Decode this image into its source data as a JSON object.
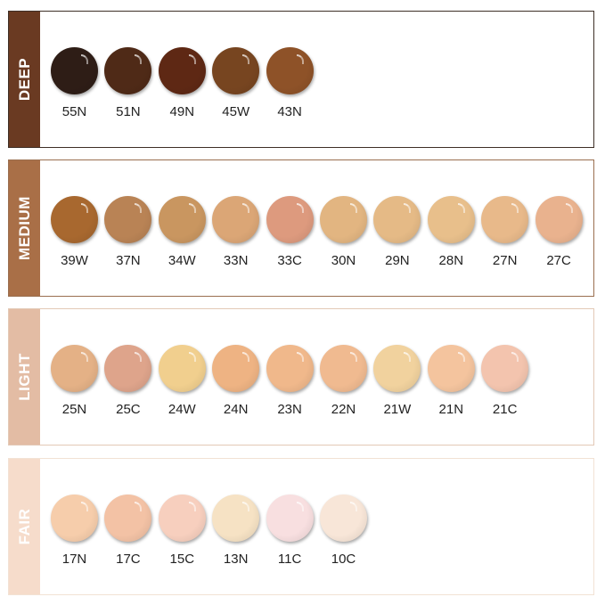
{
  "groups": [
    {
      "name": "DEEP",
      "bar_color": "#6a3a22",
      "border_color": "#3e2f26",
      "shades": [
        {
          "label": "55N",
          "color": "#2e1d16"
        },
        {
          "label": "51N",
          "color": "#4f2a17"
        },
        {
          "label": "49N",
          "color": "#5e2814"
        },
        {
          "label": "45W",
          "color": "#774520"
        },
        {
          "label": "43N",
          "color": "#8e5228"
        }
      ]
    },
    {
      "name": "MEDIUM",
      "bar_color": "#a96f47",
      "border_color": "#9a6f50",
      "shades": [
        {
          "label": "39W",
          "color": "#a8682f"
        },
        {
          "label": "37N",
          "color": "#b98355"
        },
        {
          "label": "34W",
          "color": "#c99660"
        },
        {
          "label": "33N",
          "color": "#dba676"
        },
        {
          "label": "33C",
          "color": "#dd9a7e"
        },
        {
          "label": "30N",
          "color": "#e2b581"
        },
        {
          "label": "29N",
          "color": "#e5ba86"
        },
        {
          "label": "28N",
          "color": "#e8bf8b"
        },
        {
          "label": "27N",
          "color": "#e8b98a"
        },
        {
          "label": "27C",
          "color": "#e9b28e"
        }
      ]
    },
    {
      "name": "LIGHT",
      "bar_color": "#e3bca4",
      "border_color": "#e3c9b6",
      "shades": [
        {
          "label": "25N",
          "color": "#e4b186"
        },
        {
          "label": "25C",
          "color": "#dea48b"
        },
        {
          "label": "24W",
          "color": "#f1cf8e"
        },
        {
          "label": "24N",
          "color": "#eeb383"
        },
        {
          "label": "23N",
          "color": "#f0b88b"
        },
        {
          "label": "22N",
          "color": "#f0ba90"
        },
        {
          "label": "21W",
          "color": "#f1d29e"
        },
        {
          "label": "21N",
          "color": "#f4c49e"
        },
        {
          "label": "21C",
          "color": "#f3c4ae"
        }
      ]
    },
    {
      "name": "FAIR",
      "bar_color": "#f6dccb",
      "border_color": "#f2e2d4",
      "shades": [
        {
          "label": "17N",
          "color": "#f6cdab"
        },
        {
          "label": "17C",
          "color": "#f3c2a5"
        },
        {
          "label": "15C",
          "color": "#f7cfbe"
        },
        {
          "label": "13N",
          "color": "#f6e2c4"
        },
        {
          "label": "11C",
          "color": "#f8dfe0"
        },
        {
          "label": "10C",
          "color": "#f8e6d8"
        }
      ]
    }
  ]
}
